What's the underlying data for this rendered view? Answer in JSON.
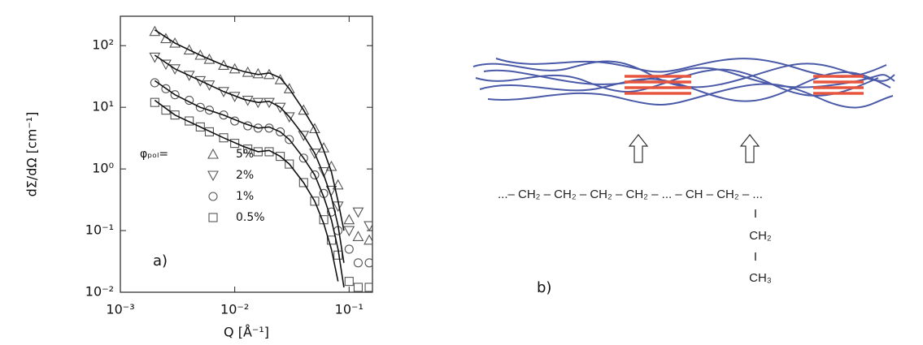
{
  "chart_data": {
    "type": "scatter",
    "x_label": "Q [Å⁻¹]",
    "y_label": "dΣ/dΩ [cm⁻¹]",
    "legend_title": "φₚₒₗ=",
    "panel_label": "a)",
    "log_x": true,
    "log_y": true,
    "xlim": [
      0.001,
      0.16
    ],
    "ylim": [
      0.01,
      300
    ],
    "xticks": [
      {
        "value": 0.001,
        "label": "10⁻³"
      },
      {
        "value": 0.01,
        "label": "10⁻²"
      },
      {
        "value": 0.1,
        "label": "10⁻¹"
      }
    ],
    "yticks": [
      {
        "value": 0.01,
        "label": "10⁻²"
      },
      {
        "value": 0.1,
        "label": "10⁻¹"
      },
      {
        "value": 1,
        "label": "10⁰"
      },
      {
        "value": 10,
        "label": "10¹"
      },
      {
        "value": 100,
        "label": "10²"
      }
    ],
    "x": [
      0.002,
      0.0025,
      0.003,
      0.004,
      0.005,
      0.006,
      0.008,
      0.01,
      0.013,
      0.016,
      0.02,
      0.025,
      0.03,
      0.04,
      0.05,
      0.06,
      0.07,
      0.08,
      0.1,
      0.12,
      0.15
    ],
    "series": [
      {
        "name": "5%",
        "marker": "triangle-up",
        "color": "#555555",
        "values": [
          170,
          130,
          110,
          85,
          70,
          60,
          48,
          42,
          37,
          35,
          34,
          28,
          20,
          9,
          4.5,
          2.2,
          1.1,
          0.55,
          0.15,
          0.08,
          0.07
        ]
      },
      {
        "name": "2%",
        "marker": "triangle-down",
        "color": "#555555",
        "values": [
          65,
          50,
          42,
          33,
          27,
          23,
          18,
          15,
          13,
          12,
          12,
          10,
          7,
          3.5,
          1.8,
          0.9,
          0.45,
          0.25,
          0.1,
          0.2,
          0.12
        ]
      },
      {
        "name": "1%",
        "marker": "circle",
        "color": "#555555",
        "values": [
          25,
          20,
          16,
          13,
          10,
          9,
          7.5,
          6,
          5,
          4.6,
          4.6,
          4,
          3,
          1.5,
          0.8,
          0.4,
          0.2,
          0.1,
          0.05,
          0.03,
          0.03
        ]
      },
      {
        "name": "0.5%",
        "marker": "square",
        "color": "#555555",
        "values": [
          12,
          9,
          7.5,
          6,
          4.8,
          4,
          3.2,
          2.6,
          2.1,
          1.9,
          1.9,
          1.6,
          1.2,
          0.6,
          0.3,
          0.15,
          0.07,
          0.04,
          0.015,
          0.012,
          0.012
        ]
      }
    ],
    "fit_x": [
      0.002,
      0.003,
      0.005,
      0.008,
      0.012,
      0.016,
      0.02,
      0.025,
      0.03,
      0.04,
      0.05,
      0.06,
      0.07,
      0.08,
      0.09
    ],
    "fit_lines": [
      {
        "color": "#111111",
        "values": [
          180,
          110,
          70,
          48,
          38,
          34,
          36,
          30,
          20,
          9,
          4.5,
          2,
          0.9,
          0.3,
          0.1
        ]
      },
      {
        "color": "#111111",
        "values": [
          70,
          42,
          27,
          18,
          13.5,
          12,
          12.5,
          10,
          7,
          3.5,
          1.8,
          0.8,
          0.35,
          0.12,
          0.03
        ]
      },
      {
        "color": "#111111",
        "values": [
          27,
          16,
          10,
          7.5,
          5.5,
          4.6,
          4.8,
          4,
          3,
          1.5,
          0.8,
          0.35,
          0.15,
          0.05,
          0.012
        ]
      },
      {
        "color": "#111111",
        "values": [
          13,
          7.5,
          4.8,
          3.2,
          2.3,
          1.9,
          2,
          1.6,
          1.2,
          0.6,
          0.3,
          0.13,
          0.05,
          0.015,
          null
        ]
      }
    ]
  },
  "diagram": {
    "backbone": "...– CH₂ – CH₂ – CH₂ – CH₂ – ... – CH – CH₂ – ...",
    "branch": [
      "I",
      "CH₂",
      "I",
      "CH₃"
    ],
    "panel_label": "b)"
  }
}
